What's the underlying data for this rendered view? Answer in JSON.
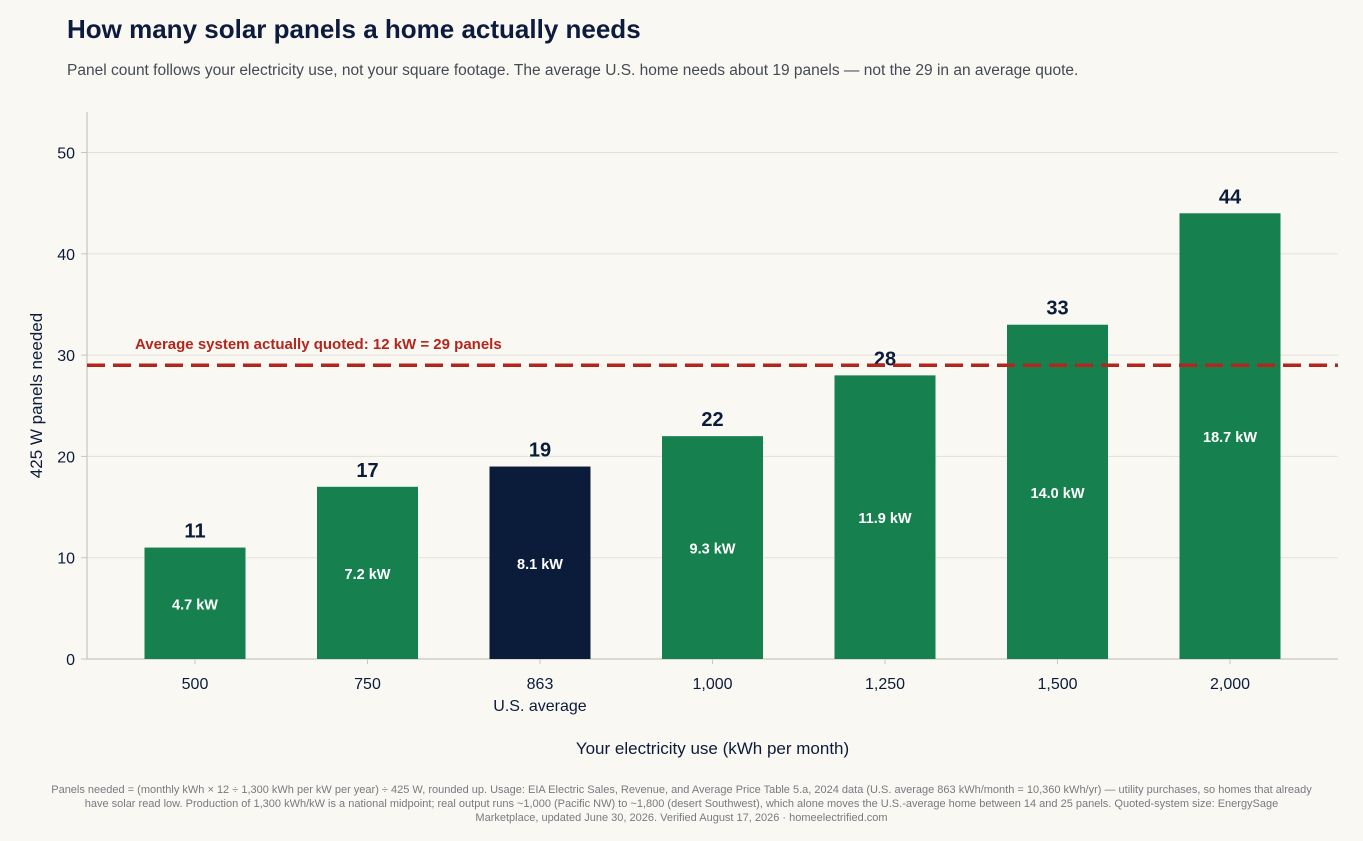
{
  "header": {
    "title": "How many solar panels a home actually needs",
    "subtitle": "Panel count follows your electricity use, not your square footage. The average U.S. home needs about 19 panels — not the 29 in an average quote."
  },
  "chart_data": {
    "type": "bar",
    "categories": [
      "500",
      "750",
      "863",
      "1,000",
      "1,250",
      "1,500",
      "2,000"
    ],
    "category_sublabels": [
      "",
      "",
      "U.S. average",
      "",
      "",
      "",
      ""
    ],
    "values": [
      11,
      17,
      19,
      22,
      28,
      33,
      44
    ],
    "inner_labels": [
      "4.7 kW",
      "7.2 kW",
      "8.1 kW",
      "9.3 kW",
      "11.9 kW",
      "14.0 kW",
      "18.7 kW"
    ],
    "highlight_index": 2,
    "xlabel": "Your electricity use (kWh per month)",
    "ylabel": "425 W panels needed",
    "ylim": [
      0,
      54
    ],
    "yticks": [
      0,
      10,
      20,
      30,
      40,
      50
    ],
    "grid": true,
    "reference_line": {
      "value": 29,
      "label": "Average system actually quoted: 12 kW = 29 panels"
    },
    "colors": {
      "bar": "#16804f",
      "highlight": "#0b1b3a",
      "reference": "#b3261e",
      "grid": "#e2e0da",
      "axis": "#c8c6c0",
      "text": "#0b1b3a"
    }
  },
  "footnote": {
    "lines": [
      "Panels needed = (monthly kWh × 12 ÷ 1,300 kWh per kW per year) ÷ 425 W, rounded up. Usage: EIA Electric Sales, Revenue, and Average Price Table 5.a, 2024 data (U.S. average 863 kWh/month = 10,360 kWh/yr) — utility purchases, so homes that already",
      "have solar read low. Production of 1,300 kWh/kW is a national midpoint; real output runs ~1,000 (Pacific NW) to ~1,800 (desert Southwest), which alone moves the U.S.-average home between 14 and 25 panels. Quoted-system size: EnergySage",
      "Marketplace, updated June 30, 2026. Verified August 17, 2026 · homeelectrified.com"
    ]
  }
}
